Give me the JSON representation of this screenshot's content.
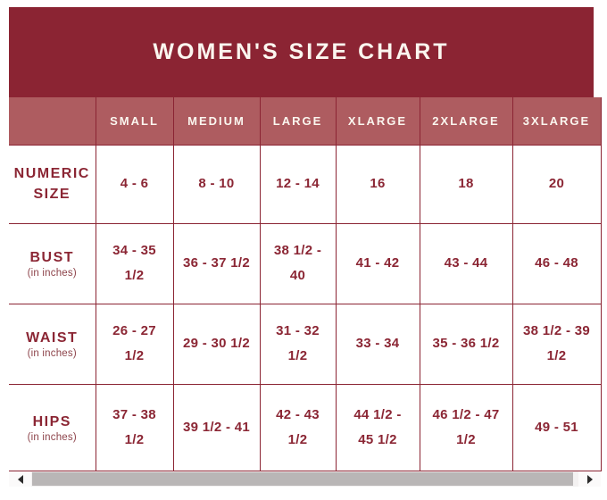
{
  "chart_data": {
    "type": "table",
    "title": "WOMEN'S SIZE CHART",
    "columns": [
      "",
      "SMALL",
      "MEDIUM",
      "LARGE",
      "XLARGE",
      "2XLARGE",
      "3XLARGE"
    ],
    "rows": [
      {
        "label": "NUMERIC SIZE",
        "sublabel": "",
        "values": [
          "4 - 6",
          "8 - 10",
          "12 - 14",
          "16",
          "18",
          "20"
        ]
      },
      {
        "label": "BUST",
        "sublabel": "(in inches)",
        "values": [
          "34 - 35 1/2",
          "36 - 37 1/2",
          "38 1/2 - 40",
          "41 - 42",
          "43 - 44",
          "46 - 48"
        ]
      },
      {
        "label": "WAIST",
        "sublabel": "(in inches)",
        "values": [
          "26 - 27 1/2",
          "29 - 30 1/2",
          "31 - 32 1/2",
          "33 - 34",
          "35 - 36 1/2",
          "38 1/2 - 39 1/2"
        ]
      },
      {
        "label": "HIPS",
        "sublabel": "(in inches)",
        "values": [
          "37 - 38 1/2",
          "39 1/2 - 41",
          "42 - 43 1/2",
          "44 1/2 - 45 1/2",
          "46 1/2 - 47 1/2",
          "49 - 51"
        ]
      }
    ],
    "layout": {
      "units_note": "measurements in inches",
      "grid": "on",
      "header_position": "top"
    }
  },
  "colors": {
    "banner_bg": "#8b2433",
    "header_bg": "#ae5c60",
    "grid_line": "#8b2433",
    "cell_text": "#8b2634",
    "title_text": "#fbf6ef",
    "scrollbar_thumb": "#b9b6b6"
  },
  "scrollbar": {
    "left_arrow_icon": "left-triangle",
    "right_arrow_icon": "right-triangle"
  }
}
